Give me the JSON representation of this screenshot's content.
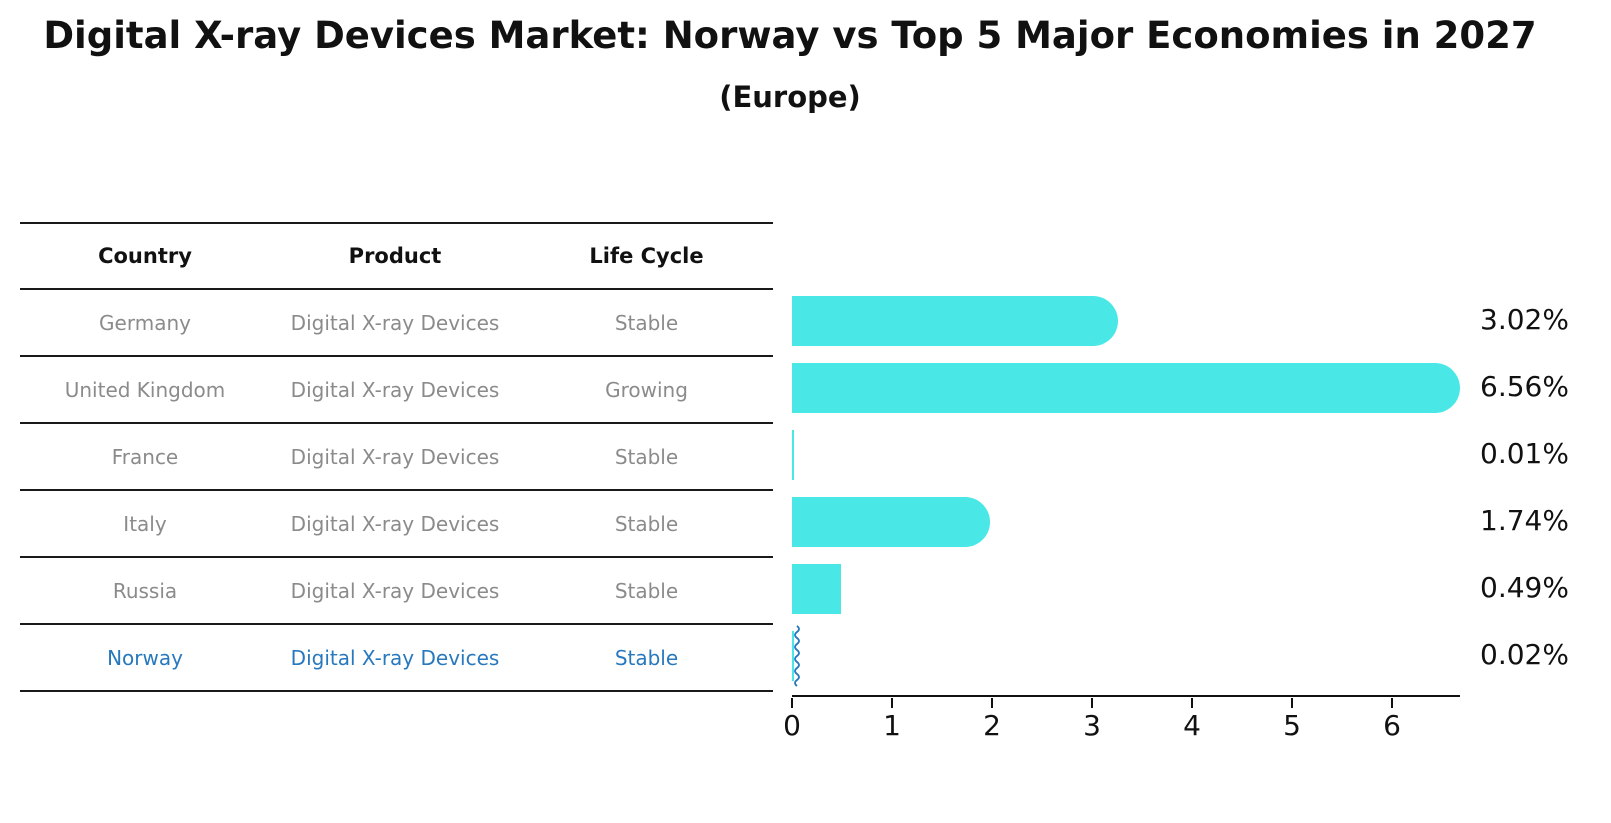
{
  "title": "Digital X-ray Devices Market: Norway vs Top 5 Major Economies in 2027",
  "subtitle": "(Europe)",
  "table": {
    "headers": {
      "country": "Country",
      "product": "Product",
      "life_cycle": "Life Cycle"
    },
    "rows": [
      {
        "country": "Germany",
        "product": "Digital X-ray Devices",
        "life_cycle": "Stable",
        "value_label": "3.02%",
        "highlight": false
      },
      {
        "country": "United Kingdom",
        "product": "Digital X-ray Devices",
        "life_cycle": "Growing",
        "value_label": "6.56%",
        "highlight": false
      },
      {
        "country": "France",
        "product": "Digital X-ray Devices",
        "life_cycle": "Stable",
        "value_label": "0.01%",
        "highlight": false
      },
      {
        "country": "Italy",
        "product": "Digital X-ray Devices",
        "life_cycle": "Stable",
        "value_label": "1.74%",
        "highlight": false
      },
      {
        "country": "Russia",
        "product": "Digital X-ray Devices",
        "life_cycle": "Stable",
        "value_label": "0.49%",
        "highlight": false
      },
      {
        "country": "Norway",
        "product": "Digital X-ray Devices",
        "life_cycle": "Stable",
        "value_label": "0.02%",
        "highlight": true
      }
    ]
  },
  "chart_data": {
    "type": "bar",
    "orientation": "horizontal",
    "title": "Digital X-ray Devices Market: Norway vs Top 5 Major Economies in 2027",
    "subtitle": "(Europe)",
    "categories": [
      "Germany",
      "United Kingdom",
      "France",
      "Italy",
      "Russia",
      "Norway"
    ],
    "values": [
      3.02,
      6.56,
      0.01,
      1.74,
      0.49,
      0.02
    ],
    "value_labels": [
      "3.02%",
      "6.56%",
      "0.01%",
      "1.74%",
      "0.49%",
      "0.02%"
    ],
    "unit": "percent",
    "x_ticks": [
      "0",
      "1",
      "2",
      "3",
      "4",
      "5",
      "6"
    ],
    "xlim": [
      0,
      6.68
    ],
    "grid": false,
    "legend": false,
    "bar_color": "#49E8E6",
    "highlight_color": "#2878BE",
    "highlighted_category": "Norway"
  },
  "colors": {
    "background": "#ffffff",
    "text": "#111111",
    "table_text": "#8b8b8b",
    "table_line": "#1a1a1a",
    "bar": "#49E8E6",
    "highlight": "#2878BE"
  }
}
